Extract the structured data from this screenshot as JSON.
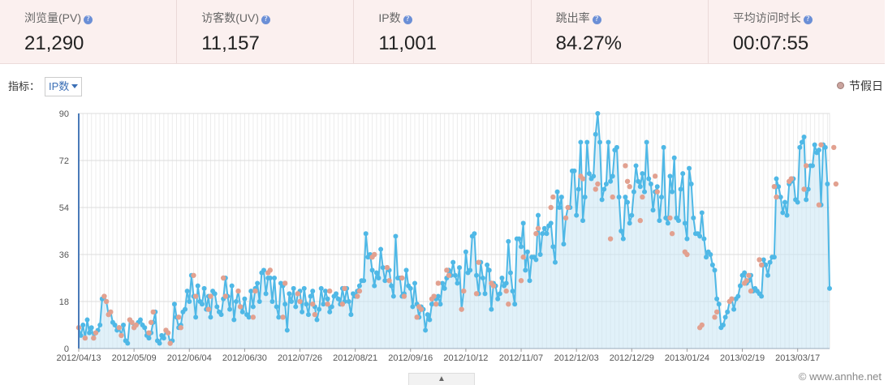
{
  "kpis": [
    {
      "label": "浏览量(PV)",
      "value": "21,290"
    },
    {
      "label": "访客数(UV)",
      "value": "11,157"
    },
    {
      "label": "IP数",
      "value": "11,001"
    },
    {
      "label": "跳出率",
      "value": "84.27%"
    },
    {
      "label": "平均访问时长",
      "value": "00:07:55"
    }
  ],
  "help_glyph": "?",
  "metric_label": "指标：",
  "metric_selected": "IP数",
  "legend_label": "节假日",
  "toggle_glyph": "▲",
  "watermark": "© www.annhe.net",
  "colors": {
    "line": "#4fb8e6",
    "area": "#c8e6f4",
    "holiday": "#e2a190",
    "axis": "#4a7ab8"
  },
  "chart_data": {
    "type": "line",
    "title": "",
    "ylim": [
      0,
      90
    ],
    "yticks": [
      0,
      18,
      36,
      54,
      72,
      90
    ],
    "xticks": [
      "2012/04/13",
      "2012/05/09",
      "2012/06/04",
      "2012/06/30",
      "2012/07/26",
      "2012/08/21",
      "2012/09/16",
      "2012/10/12",
      "2012/11/07",
      "2012/12/03",
      "2012/12/29",
      "2013/01/24",
      "2013/02/19",
      "2013/03/17"
    ],
    "x_start": "2012/04/13",
    "x_end": "2013/04/02",
    "grid": true,
    "series": [
      {
        "values": [
          8,
          5,
          9,
          4,
          11,
          6,
          8,
          4,
          6,
          7,
          9,
          19,
          20,
          18,
          13,
          14,
          10,
          9,
          7,
          8,
          5,
          9,
          3,
          2,
          11,
          10,
          8,
          9,
          10,
          11,
          9,
          8,
          5,
          4,
          6,
          10,
          14,
          3,
          2,
          5,
          4,
          7,
          6,
          2,
          3,
          17,
          12,
          8,
          9,
          14,
          15,
          22,
          18,
          28,
          20,
          12,
          24,
          18,
          17,
          23,
          15,
          20,
          12,
          22,
          21,
          16,
          14,
          13,
          19,
          27,
          20,
          15,
          24,
          11,
          18,
          22,
          16,
          14,
          19,
          13,
          12,
          22,
          16,
          23,
          25,
          18,
          29,
          30,
          21,
          27,
          27,
          18,
          27,
          16,
          12,
          25,
          24,
          17,
          7,
          21,
          18,
          23,
          16,
          21,
          22,
          14,
          23,
          17,
          13,
          20,
          22,
          16,
          11,
          15,
          23,
          17,
          22,
          19,
          14,
          16,
          20,
          21,
          19,
          17,
          23,
          18,
          23,
          18,
          13,
          21,
          20,
          22,
          24,
          26,
          26,
          44,
          35,
          36,
          30,
          24,
          29,
          27,
          38,
          31,
          26,
          31,
          30,
          24,
          20,
          43,
          27,
          27,
          20,
          21,
          30,
          24,
          23,
          16,
          25,
          17,
          12,
          16,
          15,
          7,
          13,
          11,
          17,
          20,
          19,
          20,
          17,
          25,
          23,
          27,
          30,
          28,
          33,
          28,
          25,
          31,
          15,
          22,
          37,
          29,
          30,
          43,
          44,
          28,
          21,
          33,
          27,
          21,
          32,
          30,
          15,
          25,
          24,
          19,
          21,
          27,
          24,
          25,
          41,
          29,
          22,
          17,
          42,
          42,
          39,
          48,
          30,
          37,
          26,
          35,
          35,
          34,
          51,
          36,
          44,
          46,
          44,
          47,
          48,
          39,
          33,
          60,
          54,
          58,
          40,
          50,
          54,
          54,
          68,
          68,
          51,
          61,
          79,
          49,
          58,
          79,
          67,
          65,
          66,
          82,
          90,
          79,
          57,
          61,
          63,
          79,
          64,
          66,
          76,
          77,
          58,
          45,
          42,
          58,
          56,
          48,
          51,
          60,
          70,
          64,
          62,
          67,
          60,
          79,
          65,
          63,
          53,
          60,
          62,
          49,
          58,
          77,
          50,
          48,
          66,
          60,
          73,
          50,
          49,
          61,
          67,
          48,
          42,
          69,
          63,
          50,
          44,
          44,
          43,
          52,
          42,
          35,
          37,
          36,
          32,
          30,
          19,
          17,
          8,
          9,
          12,
          14,
          18,
          19,
          15,
          19,
          20,
          24,
          28,
          29,
          25,
          26,
          28,
          22,
          23,
          22,
          21,
          20,
          34,
          32,
          28,
          33,
          35,
          35,
          65,
          62,
          58,
          52,
          56,
          51,
          63,
          64,
          65,
          57,
          56,
          77,
          79,
          81,
          57,
          61,
          70,
          70,
          78,
          75,
          76,
          55,
          78,
          77,
          63,
          23
        ]
      },
      {
        "name": "节假日",
        "type": "scatter",
        "x_index": [
          0,
          3,
          7,
          8,
          12,
          13,
          14,
          15,
          19,
          20,
          24,
          25,
          26,
          27,
          33,
          34,
          35,
          41,
          42,
          43,
          47,
          48,
          54,
          55,
          61,
          62,
          68,
          69,
          75,
          76,
          82,
          83,
          89,
          90,
          96,
          97,
          103,
          104,
          110,
          111,
          117,
          118,
          124,
          125,
          131,
          132,
          138,
          139,
          145,
          146,
          152,
          153,
          159,
          160,
          161,
          166,
          167,
          168,
          169,
          173,
          174,
          180,
          181,
          187,
          188,
          194,
          195,
          201,
          202,
          208,
          209,
          215,
          216,
          222,
          223,
          229,
          230,
          236,
          237,
          243,
          244,
          250,
          251,
          257,
          258,
          259,
          264,
          265,
          271,
          272,
          278,
          279,
          285,
          286,
          292,
          293,
          299,
          300,
          306,
          307,
          313,
          314,
          315,
          316,
          320,
          321,
          327,
          328,
          334,
          335,
          341,
          342,
          348,
          349,
          355,
          356
        ],
        "values": [
          8,
          4,
          4,
          6,
          20,
          18,
          13,
          14,
          8,
          5,
          11,
          10,
          8,
          9,
          6,
          10,
          14,
          7,
          6,
          2,
          12,
          8,
          28,
          20,
          15,
          20,
          27,
          20,
          22,
          16,
          12,
          22,
          29,
          30,
          12,
          25,
          21,
          18,
          17,
          13,
          17,
          22,
          17,
          23,
          20,
          22,
          35,
          36,
          31,
          26,
          27,
          20,
          12,
          16,
          15,
          19,
          20,
          17,
          25,
          30,
          28,
          15,
          22,
          21,
          33,
          25,
          24,
          22,
          17,
          26,
          35,
          44,
          46,
          54,
          58,
          50,
          54,
          66,
          65,
          61,
          63,
          42,
          58,
          70,
          64,
          62,
          49,
          58,
          66,
          60,
          50,
          44,
          37,
          36,
          8,
          9,
          12,
          14,
          18,
          19,
          25,
          26,
          28,
          22,
          34,
          32,
          62,
          58,
          64,
          65,
          61,
          70,
          55,
          78,
          77,
          63
        ]
      }
    ]
  }
}
